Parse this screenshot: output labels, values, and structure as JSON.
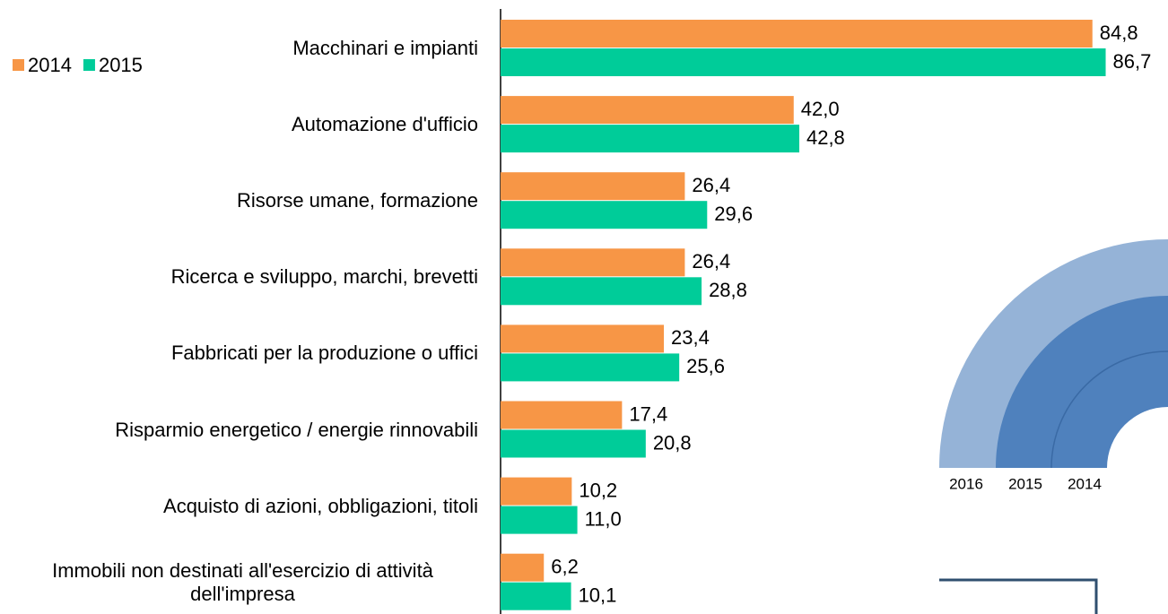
{
  "chart_data": {
    "type": "bar",
    "orientation": "horizontal",
    "categories": [
      "Macchinari e impianti",
      "Automazione d'ufficio",
      "Risorse umane, formazione",
      "Ricerca e sviluppo, marchi, brevetti",
      "Fabbricati per la produzione o uffici",
      "Risparmio energetico / energie rinnovabili",
      "Acquisto di azioni, obbligazioni, titoli",
      "Immobili non destinati all'esercizio di attività dell'impresa"
    ],
    "series": [
      {
        "name": "2014",
        "color": "#f79646",
        "values": [
          84.8,
          42.0,
          26.4,
          26.4,
          23.4,
          17.4,
          10.2,
          6.2
        ],
        "value_labels": [
          "84,8",
          "42,0",
          "26,4",
          "26,4",
          "23,4",
          "17,4",
          "10,2",
          "6,2"
        ]
      },
      {
        "name": "2015",
        "color": "#00cc99",
        "values": [
          86.7,
          42.8,
          29.6,
          28.8,
          25.6,
          20.8,
          11.0,
          10.1
        ],
        "value_labels": [
          "86,7",
          "42,8",
          "29,6",
          "28,8",
          "25,6",
          "20,8",
          "11,0",
          "10,1"
        ]
      }
    ],
    "legend": "top-left"
  },
  "inset_labels": [
    "2016",
    "2015",
    "2014"
  ]
}
